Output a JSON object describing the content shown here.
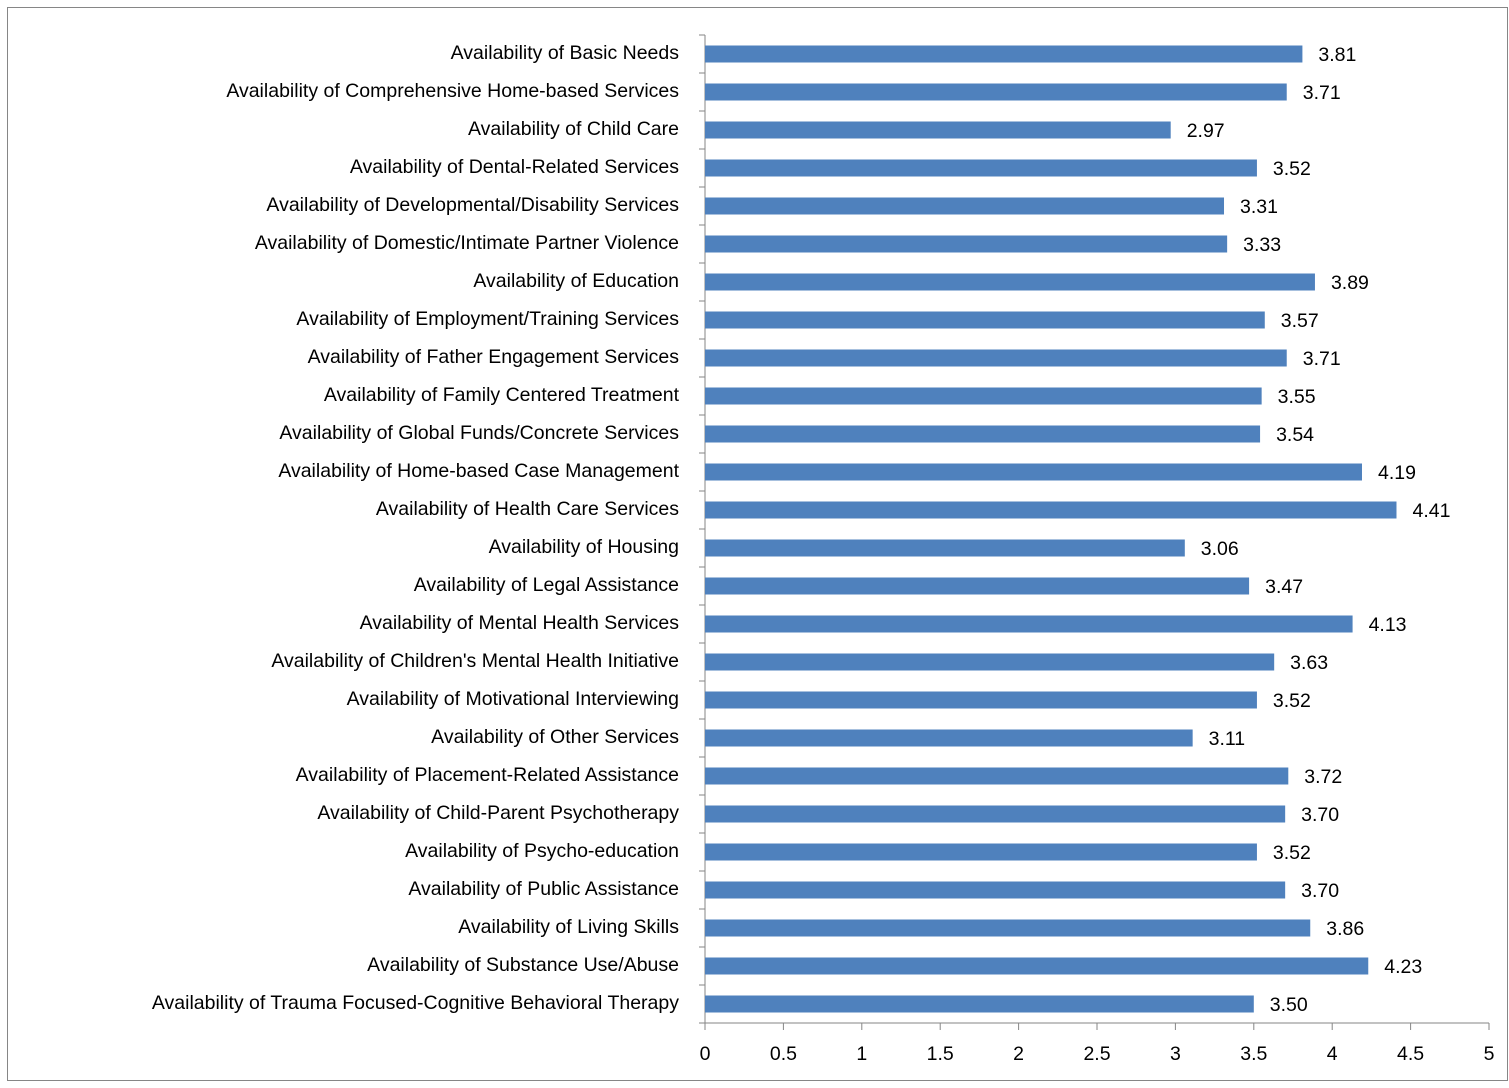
{
  "chart_data": {
    "type": "hbar",
    "categories": [
      "Availability of Basic Needs",
      "Availability of Comprehensive Home-based Services",
      "Availability of Child Care",
      "Availability of Dental-Related Services",
      "Availability of Developmental/Disability Services",
      "Availability of Domestic/Intimate Partner Violence",
      "Availability of Education",
      "Availability of Employment/Training Services",
      "Availability of Father Engagement Services",
      "Availability of Family Centered Treatment",
      "Availability of Global Funds/Concrete Services",
      "Availability of Home-based Case Management",
      "Availability of Health Care Services",
      "Availability of Housing",
      "Availability of Legal Assistance",
      "Availability of Mental Health Services",
      "Availability of Children's Mental Health Initiative",
      "Availability of Motivational Interviewing",
      "Availability of Other Services",
      "Availability of Placement-Related Assistance",
      "Availability of Child-Parent Psychotherapy",
      "Availability of Psycho-education",
      "Availability of Public Assistance",
      "Availability of Living Skills",
      "Availability of Substance Use/Abuse",
      "Availability of Trauma Focused-Cognitive Behavioral Therapy"
    ],
    "values": [
      3.81,
      3.71,
      2.97,
      3.52,
      3.31,
      3.33,
      3.89,
      3.57,
      3.71,
      3.55,
      3.54,
      4.19,
      4.41,
      3.06,
      3.47,
      4.13,
      3.63,
      3.52,
      3.11,
      3.72,
      3.7,
      3.52,
      3.7,
      3.86,
      4.23,
      3.5
    ],
    "value_labels": [
      "3.81",
      "3.71",
      "2.97",
      "3.52",
      "3.31",
      "3.33",
      "3.89",
      "3.57",
      "3.71",
      "3.55",
      "3.54",
      "4.19",
      "4.41",
      "3.06",
      "3.47",
      "4.13",
      "3.63",
      "3.52",
      "3.11",
      "3.72",
      "3.70",
      "3.52",
      "3.70",
      "3.86",
      "4.23",
      "3.50"
    ],
    "color": "#4f81bd",
    "xlim": [
      0,
      5
    ],
    "xticks": [
      0,
      0.5,
      1,
      1.5,
      2,
      2.5,
      3,
      3.5,
      4,
      4.5,
      5
    ],
    "grid": false
  }
}
